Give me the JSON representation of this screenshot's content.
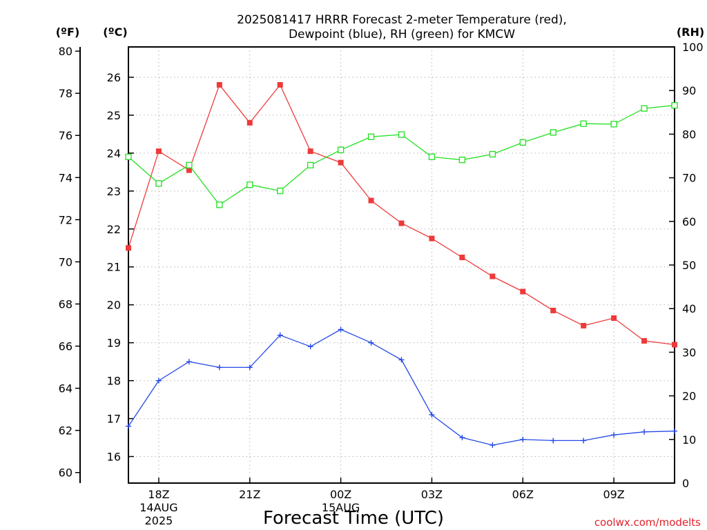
{
  "chart_data": {
    "type": "line",
    "title_lines": [
      "2025081417 HRRR Forecast 2-meter Temperature (red),",
      "Dewpoint (blue), RH (green) for KMCW"
    ],
    "xlabel": "Forecast Time (UTC)",
    "credit": "coolwx.com/modelts",
    "x": [
      17,
      18,
      19,
      20,
      21,
      22,
      23,
      24,
      25,
      26,
      27,
      28,
      29,
      30,
      31,
      32,
      33,
      34,
      35
    ],
    "xlim": [
      17,
      35
    ],
    "x_ticks": [
      {
        "x": 18,
        "lines": [
          "18Z",
          "14AUG",
          "2025"
        ]
      },
      {
        "x": 21,
        "lines": [
          "21Z"
        ]
      },
      {
        "x": 24,
        "lines": [
          "00Z",
          "15AUG"
        ]
      },
      {
        "x": 27,
        "lines": [
          "03Z"
        ]
      },
      {
        "x": 30,
        "lines": [
          "06Z"
        ]
      },
      {
        "x": 33,
        "lines": [
          "09Z"
        ]
      }
    ],
    "axes": {
      "celsius": {
        "label": "(ºC)",
        "ylim": [
          15.3,
          26.8
        ],
        "ticks": [
          16,
          17,
          18,
          19,
          20,
          21,
          22,
          23,
          24,
          25,
          26
        ]
      },
      "fahrenheit": {
        "label": "(ºF)",
        "ylim": [
          59.5,
          80.2
        ],
        "ticks": [
          60,
          62,
          64,
          66,
          68,
          70,
          72,
          74,
          76,
          78,
          80
        ]
      },
      "rh": {
        "label": "(RH)",
        "ylim": [
          0,
          100
        ],
        "ticks": [
          0,
          10,
          20,
          30,
          40,
          50,
          60,
          70,
          80,
          90,
          100
        ]
      }
    },
    "grid": true,
    "series": [
      {
        "name": "Temperature",
        "axis": "celsius",
        "color": "#ee3a3a",
        "marker": "filled-square",
        "values": [
          21.5,
          24.05,
          23.55,
          25.8,
          24.8,
          25.8,
          24.05,
          23.75,
          22.75,
          22.15,
          21.75,
          21.25,
          20.75,
          20.35,
          19.85,
          19.45,
          19.65,
          19.05,
          18.95
        ]
      },
      {
        "name": "Dewpoint",
        "axis": "celsius",
        "color": "#2448e8",
        "marker": "plus",
        "values": [
          16.8,
          18.0,
          18.5,
          18.35,
          18.35,
          19.2,
          18.9,
          19.35,
          19.0,
          18.55,
          17.1,
          16.5,
          16.3,
          16.45,
          16.42,
          16.42,
          16.57,
          16.65,
          16.67
        ]
      },
      {
        "name": "RH",
        "axis": "rh",
        "color": "#20e020",
        "marker": "open-square",
        "values": [
          74.8,
          68.7,
          72.9,
          63.8,
          68.4,
          67.0,
          72.9,
          76.4,
          79.4,
          79.9,
          74.8,
          74.1,
          75.4,
          78.1,
          80.4,
          82.4,
          82.3,
          85.9,
          86.6
        ]
      }
    ]
  }
}
